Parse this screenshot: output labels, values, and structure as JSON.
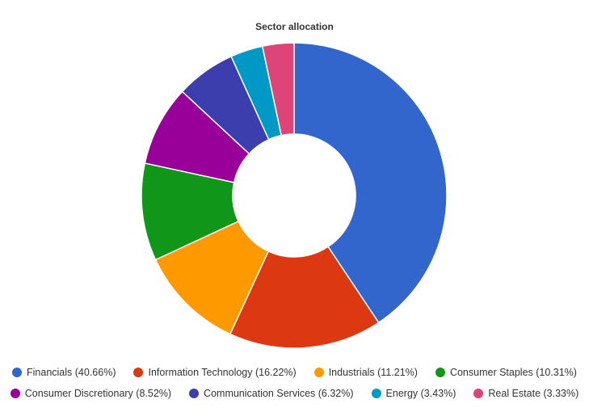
{
  "chart_data": {
    "type": "pie",
    "title": "Sector allocation",
    "donut": true,
    "legend_position": "bottom",
    "categories": [
      "Financials",
      "Information Technology",
      "Industrials",
      "Consumer Staples",
      "Consumer Discretionary",
      "Communication Services",
      "Energy",
      "Real Estate"
    ],
    "values": [
      40.66,
      16.22,
      11.21,
      10.31,
      8.52,
      6.32,
      3.43,
      3.33
    ],
    "colors": [
      "#3366cc",
      "#dc3912",
      "#ff9900",
      "#109618",
      "#990099",
      "#3b3eac",
      "#0099c6",
      "#dd4477"
    ],
    "legend_labels": [
      "Financials (40.66%)",
      "Information Technology (16.22%)",
      "Industrials (11.21%)",
      "Consumer Staples (10.31%)",
      "Consumer Discretionary (8.52%)",
      "Communication Services (6.32%)",
      "Energy (3.43%)",
      "Real Estate (3.33%)"
    ]
  }
}
